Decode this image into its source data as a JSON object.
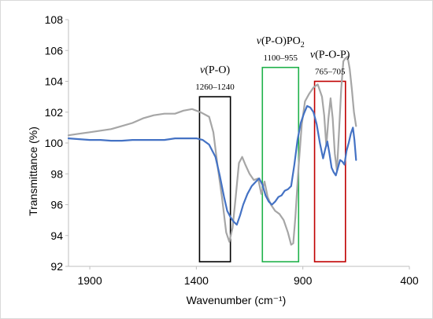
{
  "chart_data": {
    "type": "line",
    "xlabel": "Wavenumber (cm⁻¹)",
    "ylabel": "Transmittance (%)",
    "x_reversed": true,
    "xlim": [
      2000,
      400
    ],
    "ylim": [
      92,
      108
    ],
    "xticks": [
      1900,
      1400,
      900,
      400
    ],
    "yticks": [
      92,
      94,
      96,
      98,
      100,
      102,
      104,
      106,
      108
    ],
    "grid": false,
    "legend": "none",
    "series": [
      {
        "color": "#a6a6a6",
        "points": [
          [
            2000,
            100.5
          ],
          [
            1950,
            100.6
          ],
          [
            1900,
            100.7
          ],
          [
            1850,
            100.8
          ],
          [
            1800,
            100.9
          ],
          [
            1750,
            101.1
          ],
          [
            1700,
            101.3
          ],
          [
            1650,
            101.6
          ],
          [
            1600,
            101.8
          ],
          [
            1550,
            101.9
          ],
          [
            1500,
            101.9
          ],
          [
            1460,
            102.1
          ],
          [
            1420,
            102.2
          ],
          [
            1380,
            102.0
          ],
          [
            1340,
            101.7
          ],
          [
            1320,
            100.7
          ],
          [
            1300,
            98.5
          ],
          [
            1280,
            96.5
          ],
          [
            1260,
            94.2
          ],
          [
            1245,
            93.6
          ],
          [
            1230,
            94.5
          ],
          [
            1215,
            96.5
          ],
          [
            1200,
            98.7
          ],
          [
            1185,
            99.1
          ],
          [
            1170,
            98.6
          ],
          [
            1150,
            98.0
          ],
          [
            1130,
            97.6
          ],
          [
            1110,
            97.7
          ],
          [
            1095,
            96.7
          ],
          [
            1080,
            97.5
          ],
          [
            1065,
            96.5
          ],
          [
            1050,
            96.0
          ],
          [
            1030,
            95.6
          ],
          [
            1010,
            95.4
          ],
          [
            990,
            95.0
          ],
          [
            970,
            94.2
          ],
          [
            955,
            93.4
          ],
          [
            945,
            93.5
          ],
          [
            935,
            95.2
          ],
          [
            920,
            98.5
          ],
          [
            905,
            101.2
          ],
          [
            890,
            102.7
          ],
          [
            870,
            103.2
          ],
          [
            850,
            103.6
          ],
          [
            830,
            103.8
          ],
          [
            810,
            103.0
          ],
          [
            800,
            101.8
          ],
          [
            790,
            99.8
          ],
          [
            780,
            101.6
          ],
          [
            770,
            102.9
          ],
          [
            760,
            101.6
          ],
          [
            750,
            99.3
          ],
          [
            740,
            98.2
          ],
          [
            730,
            100.8
          ],
          [
            720,
            103.5
          ],
          [
            710,
            105.3
          ],
          [
            700,
            105.5
          ],
          [
            690,
            105.6
          ],
          [
            680,
            104.8
          ],
          [
            670,
            103.5
          ],
          [
            660,
            102.0
          ],
          [
            650,
            101.1
          ]
        ]
      },
      {
        "color": "#4472c4",
        "points": [
          [
            2000,
            100.3
          ],
          [
            1950,
            100.25
          ],
          [
            1900,
            100.2
          ],
          [
            1850,
            100.2
          ],
          [
            1800,
            100.15
          ],
          [
            1750,
            100.15
          ],
          [
            1700,
            100.2
          ],
          [
            1650,
            100.2
          ],
          [
            1600,
            100.2
          ],
          [
            1550,
            100.2
          ],
          [
            1500,
            100.3
          ],
          [
            1450,
            100.3
          ],
          [
            1400,
            100.3
          ],
          [
            1370,
            100.2
          ],
          [
            1340,
            99.9
          ],
          [
            1310,
            99.1
          ],
          [
            1290,
            97.9
          ],
          [
            1270,
            96.5
          ],
          [
            1255,
            95.6
          ],
          [
            1240,
            95.2
          ],
          [
            1225,
            94.9
          ],
          [
            1210,
            94.7
          ],
          [
            1195,
            95.3
          ],
          [
            1180,
            96.0
          ],
          [
            1160,
            96.7
          ],
          [
            1140,
            97.2
          ],
          [
            1120,
            97.5
          ],
          [
            1105,
            97.7
          ],
          [
            1090,
            97.3
          ],
          [
            1075,
            96.6
          ],
          [
            1060,
            96.2
          ],
          [
            1045,
            96.0
          ],
          [
            1030,
            96.2
          ],
          [
            1015,
            96.5
          ],
          [
            1000,
            96.6
          ],
          [
            985,
            96.9
          ],
          [
            970,
            97.0
          ],
          [
            955,
            97.2
          ],
          [
            940,
            98.6
          ],
          [
            925,
            100.2
          ],
          [
            910,
            101.3
          ],
          [
            895,
            101.9
          ],
          [
            880,
            102.4
          ],
          [
            865,
            102.3
          ],
          [
            850,
            102.0
          ],
          [
            835,
            101.2
          ],
          [
            820,
            100.0
          ],
          [
            805,
            99.0
          ],
          [
            795,
            99.6
          ],
          [
            785,
            100.1
          ],
          [
            775,
            99.3
          ],
          [
            765,
            98.4
          ],
          [
            755,
            98.1
          ],
          [
            745,
            97.9
          ],
          [
            735,
            98.4
          ],
          [
            725,
            98.9
          ],
          [
            715,
            98.8
          ],
          [
            705,
            98.6
          ],
          [
            695,
            99.5
          ],
          [
            685,
            100.0
          ],
          [
            675,
            100.6
          ],
          [
            665,
            101.0
          ],
          [
            658,
            100.2
          ],
          [
            650,
            98.9
          ]
        ]
      }
    ],
    "annotations": [
      {
        "label_prefix": "ν(P-O)",
        "label_sub": "",
        "range": "1260–1240",
        "x0": 1240,
        "x1": 1385,
        "y0": 92.3,
        "y1": 103.0,
        "color": "#000000"
      },
      {
        "label_prefix": "ν(P-O)PO",
        "label_sub": "2",
        "range": "1100–955",
        "x0": 920,
        "x1": 1090,
        "y0": 92.3,
        "y1": 104.9,
        "color": "#20b24b"
      },
      {
        "label_prefix": "ν(P-O-P)",
        "label_sub": "",
        "range": "765–705",
        "x0": 700,
        "x1": 845,
        "y0": 92.3,
        "y1": 104.0,
        "color": "#c00000"
      }
    ]
  }
}
